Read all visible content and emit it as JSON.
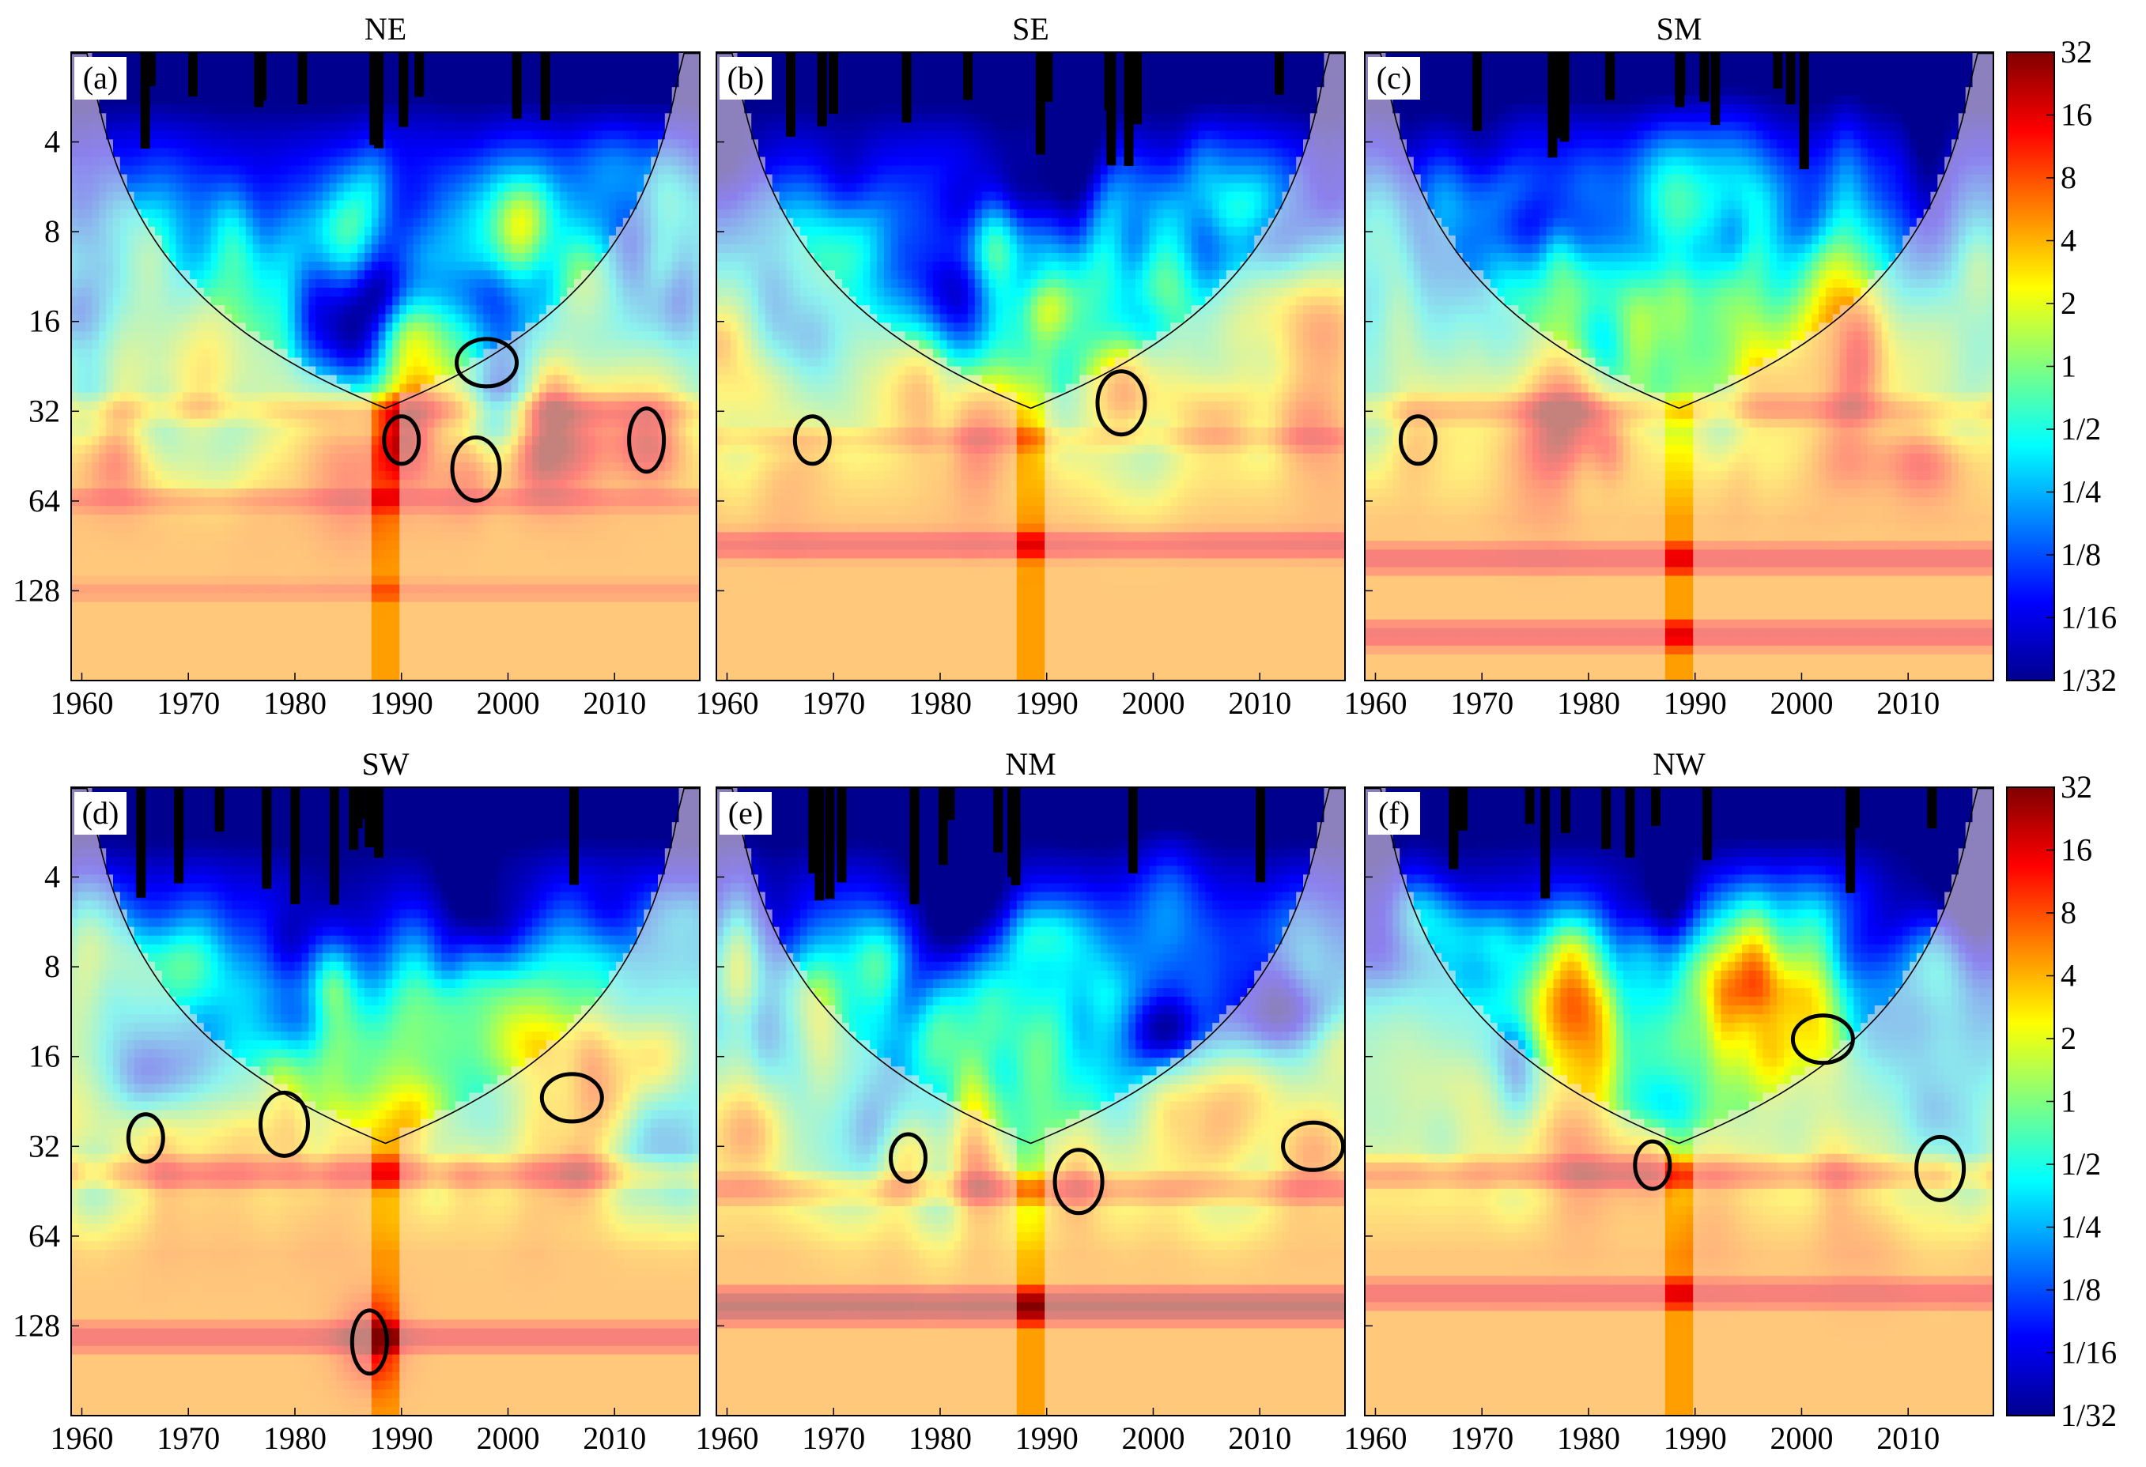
{
  "figure": {
    "colormap": [
      "#00008f",
      "#0000ff",
      "#0080ff",
      "#00ffff",
      "#80ff80",
      "#ffff00",
      "#ff8000",
      "#ff0000",
      "#800000"
    ],
    "outside_cone_tint": "#ffffff",
    "contour_color": "#000000"
  },
  "chart_data": [
    {
      "type": "heatmap",
      "panel": "(a)",
      "title": "NE",
      "x": {
        "ticks": [
          1960,
          1970,
          1980,
          1990,
          2000,
          2010
        ],
        "range": [
          1959,
          2018
        ]
      },
      "y": {
        "ticks": [
          "4",
          "8",
          "16",
          "32",
          "64",
          "128"
        ],
        "range": [
          2,
          256
        ],
        "scale": "log2",
        "inverted": true
      },
      "power_bands": [
        {
          "period": 32,
          "level": 4
        },
        {
          "period": 64,
          "level": 8
        },
        {
          "period": 128,
          "level": 8
        }
      ],
      "significant_regions": [
        {
          "year": 1990,
          "period": 40
        },
        {
          "year": 1997,
          "period": 50
        },
        {
          "year": 1998,
          "period": 22
        },
        {
          "year": 2013,
          "period": 40
        }
      ]
    },
    {
      "type": "heatmap",
      "panel": "(b)",
      "title": "SE",
      "x": {
        "ticks": [
          1960,
          1970,
          1980,
          1990,
          2000,
          2010
        ],
        "range": [
          1959,
          2018
        ]
      },
      "y": {
        "ticks": [
          "4",
          "8",
          "16",
          "32",
          "64",
          "128"
        ],
        "range": [
          2,
          256
        ],
        "scale": "log2",
        "inverted": true
      },
      "power_bands": [
        {
          "period": 40,
          "level": 4
        },
        {
          "period": 90,
          "level": 16
        }
      ],
      "significant_regions": [
        {
          "year": 1968,
          "period": 40
        },
        {
          "year": 1997,
          "period": 30
        }
      ]
    },
    {
      "type": "heatmap",
      "panel": "(c)",
      "title": "SM",
      "x": {
        "ticks": [
          1960,
          1970,
          1980,
          1990,
          2000,
          2010
        ],
        "range": [
          1959,
          2018
        ]
      },
      "y": {
        "ticks": [
          "4",
          "8",
          "16",
          "32",
          "64",
          "128"
        ],
        "range": [
          2,
          256
        ],
        "scale": "log2",
        "inverted": true
      },
      "power_bands": [
        {
          "period": 32,
          "level": 4
        },
        {
          "period": 100,
          "level": 16
        },
        {
          "period": 180,
          "level": 16
        }
      ],
      "significant_regions": [
        {
          "year": 1964,
          "period": 40
        }
      ]
    },
    {
      "type": "heatmap",
      "panel": "(d)",
      "title": "SW",
      "x": {
        "ticks": [
          1960,
          1970,
          1980,
          1990,
          2000,
          2010
        ],
        "range": [
          1959,
          2018
        ]
      },
      "y": {
        "ticks": [
          "4",
          "8",
          "16",
          "32",
          "64",
          "128"
        ],
        "range": [
          2,
          256
        ],
        "scale": "log2",
        "inverted": true
      },
      "power_bands": [
        {
          "period": 40,
          "level": 8
        },
        {
          "period": 140,
          "level": 16
        }
      ],
      "significant_regions": [
        {
          "year": 1966,
          "period": 30
        },
        {
          "year": 1979,
          "period": 27
        },
        {
          "year": 2006,
          "period": 22
        },
        {
          "year": 1987,
          "period": 145
        }
      ]
    },
    {
      "type": "heatmap",
      "panel": "(e)",
      "title": "NM",
      "x": {
        "ticks": [
          1960,
          1970,
          1980,
          1990,
          2000,
          2010
        ],
        "range": [
          1959,
          2018
        ]
      },
      "y": {
        "ticks": [
          "4",
          "8",
          "16",
          "32",
          "64",
          "128"
        ],
        "range": [
          2,
          256
        ],
        "scale": "log2",
        "inverted": true
      },
      "power_bands": [
        {
          "period": 45,
          "level": 8
        },
        {
          "period": 110,
          "level": 32
        }
      ],
      "significant_regions": [
        {
          "year": 1977,
          "period": 35
        },
        {
          "year": 1993,
          "period": 42
        },
        {
          "year": 2015,
          "period": 32
        }
      ]
    },
    {
      "type": "heatmap",
      "panel": "(f)",
      "title": "NW",
      "x": {
        "ticks": [
          1960,
          1970,
          1980,
          1990,
          2000,
          2010
        ],
        "range": [
          1959,
          2018
        ]
      },
      "y": {
        "ticks": [
          "4",
          "8",
          "16",
          "32",
          "64",
          "128"
        ],
        "range": [
          2,
          256
        ],
        "scale": "log2",
        "inverted": true
      },
      "power_bands": [
        {
          "period": 40,
          "level": 8
        },
        {
          "period": 100,
          "level": 16
        }
      ],
      "significant_regions": [
        {
          "year": 1986,
          "period": 37
        },
        {
          "year": 2013,
          "period": 38
        },
        {
          "year": 2002,
          "period": 14
        }
      ]
    }
  ],
  "colorbar": {
    "scale": "log2",
    "range": [
      0.03125,
      32
    ],
    "labels": [
      "32",
      "16",
      "8",
      "4",
      "2",
      "1",
      "1/2",
      "1/4",
      "1/8",
      "1/16",
      "1/32"
    ]
  }
}
